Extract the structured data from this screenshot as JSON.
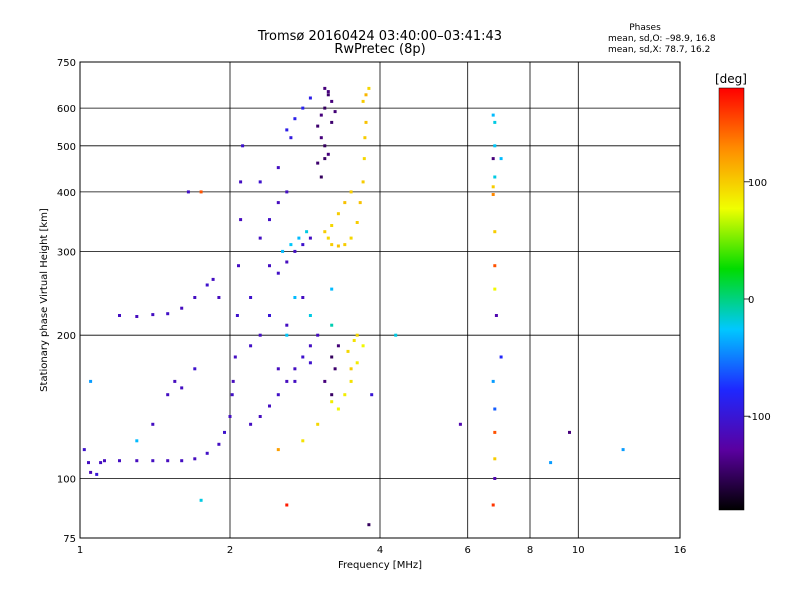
{
  "chart_data": {
    "type": "scatter",
    "title": "Tromsø 20160424 03:40:00–03:41:43",
    "subtitle": "RwPretec (8p)",
    "xlabel": "Frequency [MHz]",
    "ylabel": "Stationary phase Virtual Height [km]",
    "x_scale": "log",
    "y_scale": "log",
    "xlim": [
      1,
      16
    ],
    "ylim": [
      75,
      750
    ],
    "x_ticks": [
      1,
      2,
      4,
      6,
      8,
      10,
      16
    ],
    "y_ticks": [
      75,
      100,
      200,
      300,
      400,
      500,
      600,
      750
    ],
    "grid": true,
    "legend": {
      "title": "Phases",
      "lines": [
        "mean, sd,O: –98.9, 16.8",
        "mean, sd,X:  78.7, 16.2"
      ]
    },
    "colorbar": {
      "label": "[deg]",
      "range": [
        -180,
        180
      ],
      "ticks": [
        100,
        0,
        -100
      ],
      "colors": [
        "#000000",
        "#5a00a0",
        "#1e28ff",
        "#00c8ff",
        "#00dc00",
        "#f0ff00",
        "#ff8c00",
        "#ff0000"
      ]
    },
    "series": [
      {
        "points": [
          [
            1.02,
            115,
            -105
          ],
          [
            1.04,
            108,
            -110
          ],
          [
            1.05,
            103,
            -115
          ],
          [
            1.08,
            102,
            -100
          ],
          [
            1.1,
            108,
            -110
          ],
          [
            1.12,
            109,
            -112
          ],
          [
            1.2,
            109,
            -110
          ],
          [
            1.3,
            109,
            -112
          ],
          [
            1.4,
            109,
            -110
          ],
          [
            1.5,
            109,
            -112
          ],
          [
            1.6,
            109,
            -110
          ],
          [
            1.7,
            110,
            -112
          ],
          [
            1.8,
            113,
            -108
          ],
          [
            1.9,
            118,
            -110
          ],
          [
            1.95,
            125,
            -105
          ],
          [
            2.0,
            135,
            -110
          ],
          [
            2.02,
            150,
            -108
          ],
          [
            2.03,
            160,
            -112
          ],
          [
            2.05,
            180,
            -110
          ],
          [
            2.07,
            220,
            -105
          ],
          [
            2.08,
            280,
            -110
          ],
          [
            2.1,
            350,
            -112
          ],
          [
            2.1,
            420,
            -110
          ],
          [
            2.12,
            500,
            -105
          ],
          [
            2.2,
            130,
            -110
          ],
          [
            2.3,
            135,
            -112
          ],
          [
            2.4,
            142,
            -110
          ],
          [
            2.5,
            150,
            -108
          ],
          [
            2.6,
            160,
            -112
          ],
          [
            2.7,
            170,
            -110
          ],
          [
            2.8,
            180,
            -105
          ],
          [
            2.9,
            190,
            -110
          ],
          [
            3.0,
            200,
            -112
          ],
          [
            2.4,
            280,
            -110
          ],
          [
            2.5,
            270,
            -108
          ],
          [
            2.6,
            285,
            -112
          ],
          [
            2.7,
            300,
            -110
          ],
          [
            2.8,
            310,
            -105
          ],
          [
            2.9,
            320,
            -110
          ],
          [
            2.3,
            320,
            -110
          ],
          [
            2.4,
            350,
            -108
          ],
          [
            2.5,
            380,
            -112
          ],
          [
            2.6,
            400,
            -110
          ],
          [
            2.3,
            420,
            -105
          ],
          [
            2.5,
            450,
            -110
          ],
          [
            1.2,
            220,
            -110
          ],
          [
            1.3,
            219,
            -112
          ],
          [
            1.4,
            221,
            -110
          ],
          [
            1.5,
            222,
            -108
          ],
          [
            1.6,
            228,
            -112
          ],
          [
            1.7,
            240,
            -110
          ],
          [
            1.8,
            255,
            -105
          ],
          [
            1.85,
            262,
            -110
          ],
          [
            1.9,
            240,
            -112
          ],
          [
            1.65,
            400,
            -108
          ],
          [
            1.5,
            150,
            -110
          ],
          [
            1.55,
            160,
            -112
          ],
          [
            1.6,
            155,
            -110
          ],
          [
            1.7,
            170,
            -105
          ],
          [
            1.4,
            130,
            -110
          ],
          [
            2.6,
            540,
            -90
          ],
          [
            2.7,
            570,
            -88
          ],
          [
            2.8,
            600,
            -85
          ],
          [
            2.9,
            630,
            -90
          ],
          [
            2.65,
            520,
            -95
          ],
          [
            2.2,
            190,
            -108
          ],
          [
            2.3,
            200,
            -110
          ],
          [
            2.5,
            170,
            -112
          ],
          [
            2.7,
            160,
            -110
          ],
          [
            2.9,
            175,
            -105
          ],
          [
            2.4,
            220,
            -100
          ],
          [
            2.6,
            210,
            -110
          ],
          [
            2.2,
            240,
            -105
          ],
          [
            2.8,
            240,
            -110
          ]
        ]
      },
      {
        "points": [
          [
            3.1,
            660,
            -140
          ],
          [
            3.15,
            640,
            -145
          ],
          [
            3.2,
            620,
            -140
          ],
          [
            3.1,
            600,
            -150
          ],
          [
            3.05,
            580,
            -140
          ],
          [
            3.0,
            550,
            -145
          ],
          [
            3.05,
            520,
            -140
          ],
          [
            3.1,
            500,
            -150
          ],
          [
            3.15,
            480,
            -140
          ],
          [
            3.0,
            460,
            -145
          ],
          [
            3.05,
            430,
            -150
          ],
          [
            3.15,
            650,
            -140
          ],
          [
            3.2,
            560,
            -145
          ],
          [
            3.1,
            470,
            -148
          ],
          [
            3.25,
            590,
            -142
          ],
          [
            3.2,
            180,
            -150
          ],
          [
            3.25,
            170,
            -145
          ],
          [
            3.1,
            160,
            -140
          ],
          [
            3.2,
            150,
            -148
          ],
          [
            3.3,
            190,
            -142
          ]
        ]
      },
      {
        "points": [
          [
            3.1,
            330,
            100
          ],
          [
            3.15,
            320,
            95
          ],
          [
            3.2,
            310,
            100
          ],
          [
            3.3,
            308,
            105
          ],
          [
            3.4,
            310,
            100
          ],
          [
            3.5,
            320,
            95
          ],
          [
            3.6,
            345,
            100
          ],
          [
            3.65,
            380,
            105
          ],
          [
            3.7,
            420,
            100
          ],
          [
            3.72,
            470,
            95
          ],
          [
            3.73,
            520,
            100
          ],
          [
            3.75,
            560,
            105
          ],
          [
            3.7,
            620,
            100
          ],
          [
            3.8,
            660,
            95
          ],
          [
            3.75,
            640,
            110
          ],
          [
            3.2,
            340,
            95
          ],
          [
            3.3,
            360,
            100
          ],
          [
            3.4,
            380,
            105
          ],
          [
            3.5,
            400,
            100
          ],
          [
            3.3,
            140,
            80
          ],
          [
            3.4,
            150,
            85
          ],
          [
            3.5,
            160,
            90
          ],
          [
            3.6,
            175,
            85
          ],
          [
            3.7,
            190,
            80
          ],
          [
            3.45,
            185,
            95
          ],
          [
            3.55,
            195,
            90
          ],
          [
            3.5,
            170,
            100
          ],
          [
            3.2,
            145,
            85
          ],
          [
            3.6,
            200,
            95
          ]
        ]
      },
      {
        "points": [
          [
            2.55,
            300,
            -30
          ],
          [
            2.65,
            310,
            -25
          ],
          [
            2.75,
            320,
            -30
          ],
          [
            2.85,
            330,
            -20
          ],
          [
            2.7,
            240,
            -30
          ],
          [
            2.9,
            220,
            -20
          ],
          [
            3.2,
            250,
            -30
          ],
          [
            2.6,
            200,
            -25
          ],
          [
            6.75,
            580,
            -30
          ],
          [
            6.8,
            560,
            -20
          ],
          [
            6.8,
            500,
            -25
          ],
          [
            7.0,
            470,
            -30
          ],
          [
            6.8,
            430,
            -20
          ],
          [
            3.2,
            210,
            -10
          ]
        ]
      },
      {
        "points": [
          [
            6.75,
            470,
            -140
          ],
          [
            6.75,
            410,
            100
          ],
          [
            6.75,
            395,
            130
          ],
          [
            6.8,
            330,
            100
          ],
          [
            6.8,
            280,
            150
          ],
          [
            6.8,
            250,
            80
          ],
          [
            6.85,
            220,
            -120
          ],
          [
            7.0,
            180,
            -80
          ],
          [
            6.75,
            160,
            -40
          ],
          [
            6.8,
            140,
            -60
          ],
          [
            6.8,
            125,
            150
          ],
          [
            6.8,
            110,
            100
          ],
          [
            6.8,
            100,
            -120
          ],
          [
            6.75,
            88,
            160
          ],
          [
            2.6,
            88,
            170
          ],
          [
            3.8,
            80,
            -150
          ],
          [
            3.85,
            150,
            -100
          ],
          [
            4.3,
            200,
            -20
          ],
          [
            5.8,
            130,
            -120
          ],
          [
            8.8,
            108,
            -40
          ],
          [
            9.6,
            125,
            -140
          ],
          [
            12.3,
            115,
            -40
          ],
          [
            1.75,
            90,
            -20
          ],
          [
            1.75,
            400,
            150
          ],
          [
            1.3,
            120,
            -30
          ],
          [
            1.05,
            160,
            -40
          ],
          [
            2.5,
            115,
            120
          ],
          [
            2.8,
            120,
            90
          ],
          [
            3.0,
            130,
            95
          ]
        ]
      }
    ]
  }
}
